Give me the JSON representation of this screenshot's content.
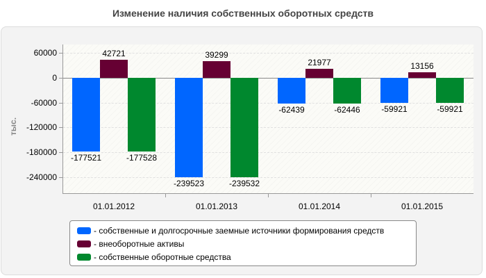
{
  "chart_data": {
    "type": "bar",
    "title": "Изменение наличия собственных оборотных средств",
    "xlabel": "",
    "ylabel": "тыс.",
    "categories": [
      "01.01.2012",
      "01.01.2013",
      "01.01.2014",
      "01.01.2015"
    ],
    "series": [
      {
        "name": "- собственные и долгосрочные заемные источники формирования средств",
        "color": "#0066ff",
        "values": [
          -177521,
          -239523,
          -62439,
          -59921
        ]
      },
      {
        "name": "- внеоборотные активы",
        "color": "#660033",
        "values": [
          42721,
          39299,
          21977,
          13156
        ]
      },
      {
        "name": "- собственные оборотные средства",
        "color": "#00882e",
        "values": [
          -177528,
          -239532,
          -62446,
          -59921
        ]
      }
    ],
    "yticks": [
      60000,
      0,
      -60000,
      -120000,
      -180000,
      -240000
    ],
    "ylim": [
      -280000,
      80000
    ],
    "grid": true,
    "legend_position": "bottom"
  },
  "labels": {
    "title": "Изменение наличия собственных оборотных средств",
    "ylabel": "тыс.",
    "yticks": [
      "60000",
      "0",
      "-60000",
      "-120000",
      "-180000",
      "-240000"
    ],
    "xticks": [
      "01.01.2012",
      "01.01.2013",
      "01.01.2014",
      "01.01.2015"
    ],
    "legend": [
      "- собственные и долгосрочные заемные источники формирования средств",
      "- внеоборотные активы",
      "- собственные оборотные средства"
    ],
    "bar_values": [
      [
        "-177521",
        "42721",
        "-177528"
      ],
      [
        "-239523",
        "39299",
        "-239532"
      ],
      [
        "-62439",
        "21977",
        "-62446"
      ],
      [
        "-59921",
        "13156",
        "-59921"
      ]
    ]
  }
}
